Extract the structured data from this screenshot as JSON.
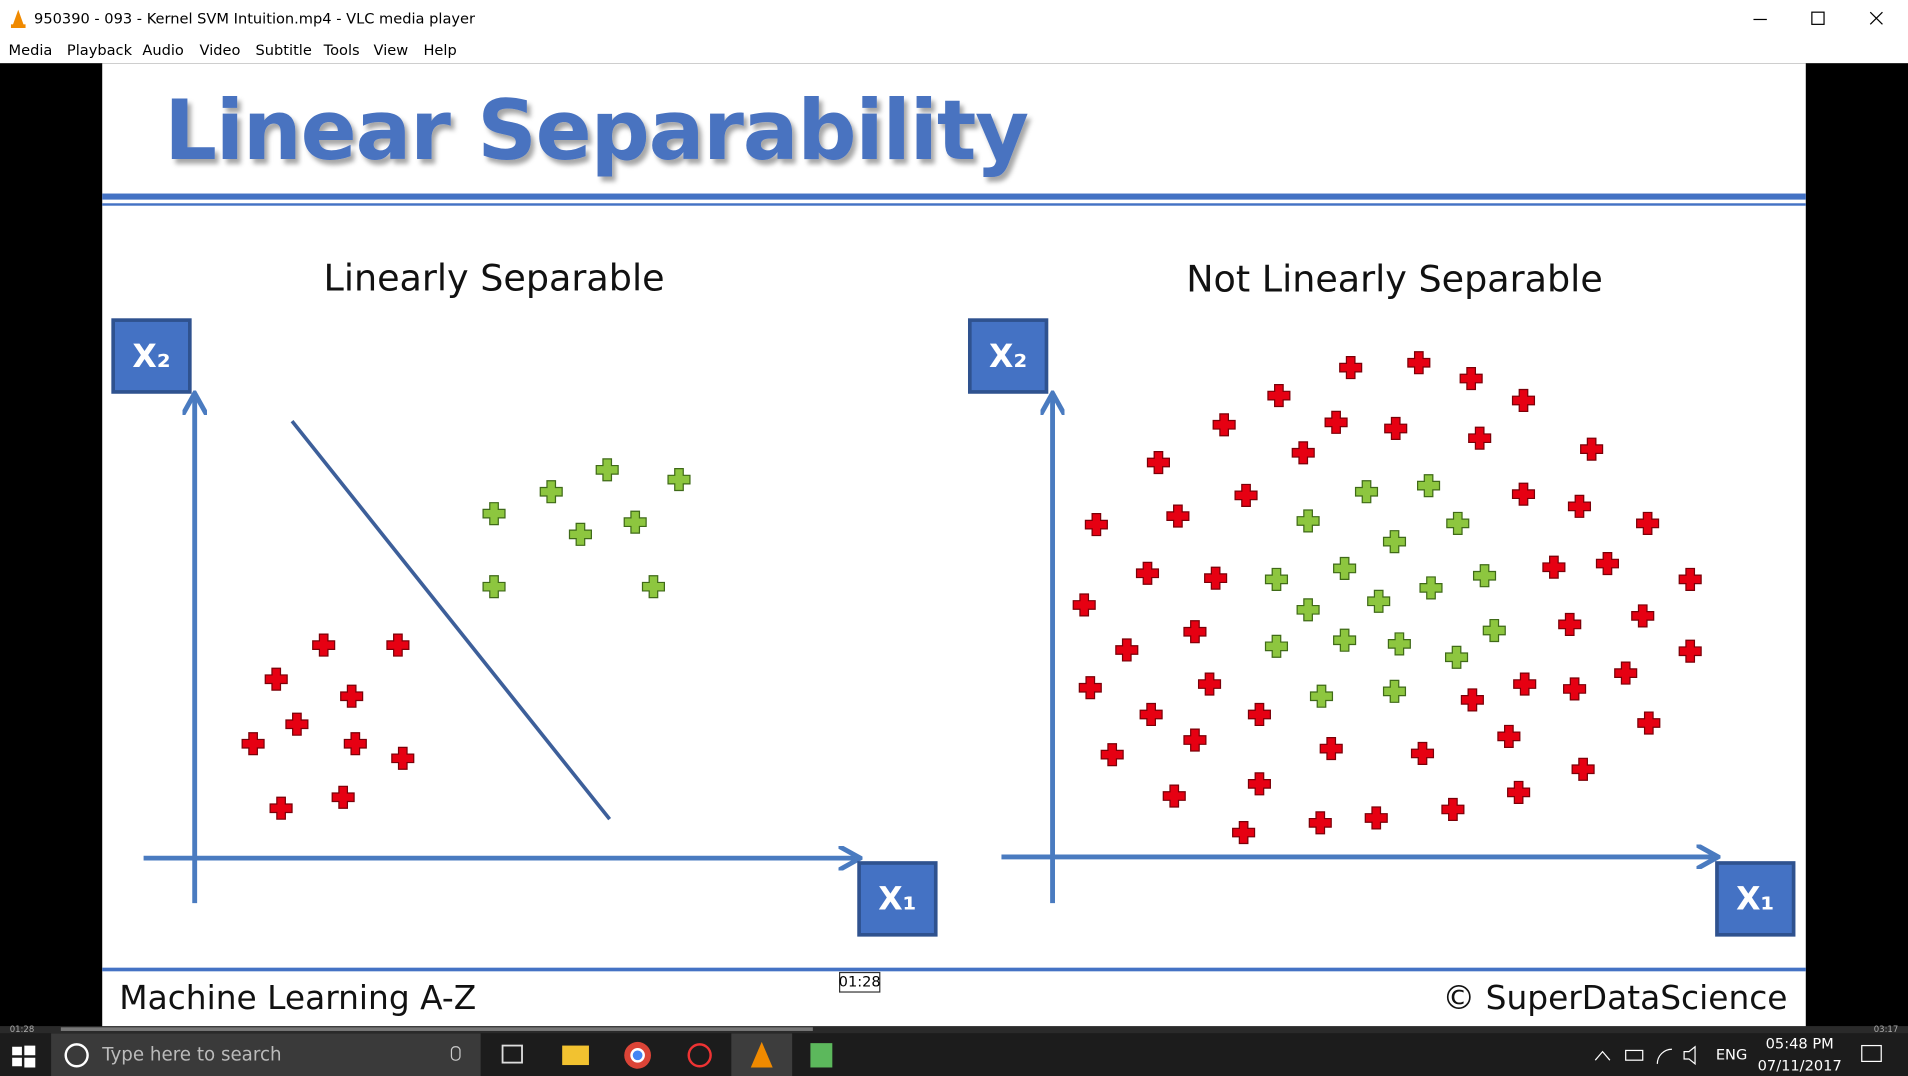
{
  "window": {
    "title": "950390 - 093 - Kernel SVM Intuition.mp4 - VLC media player"
  },
  "menu": [
    "Media",
    "Playback",
    "Audio",
    "Video",
    "Subtitle",
    "Tools",
    "View",
    "Help"
  ],
  "slide": {
    "title": "Linear Separability",
    "panels": [
      {
        "title": "Linearly Separable",
        "y_label": "X₂",
        "x_label": "X₁"
      },
      {
        "title": "Not Linearly Separable",
        "y_label": "X₂",
        "x_label": "X₁"
      }
    ],
    "footer": {
      "left": "Machine Learning A-Z",
      "right": "© SuperDataScience"
    }
  },
  "player": {
    "tooltip": "01:28",
    "elapsed": "01:28",
    "total": "03:17"
  },
  "taskbar": {
    "search": "Type here to search",
    "language": "ENG",
    "time": "05:48 PM",
    "date": "07/11/2017"
  }
}
